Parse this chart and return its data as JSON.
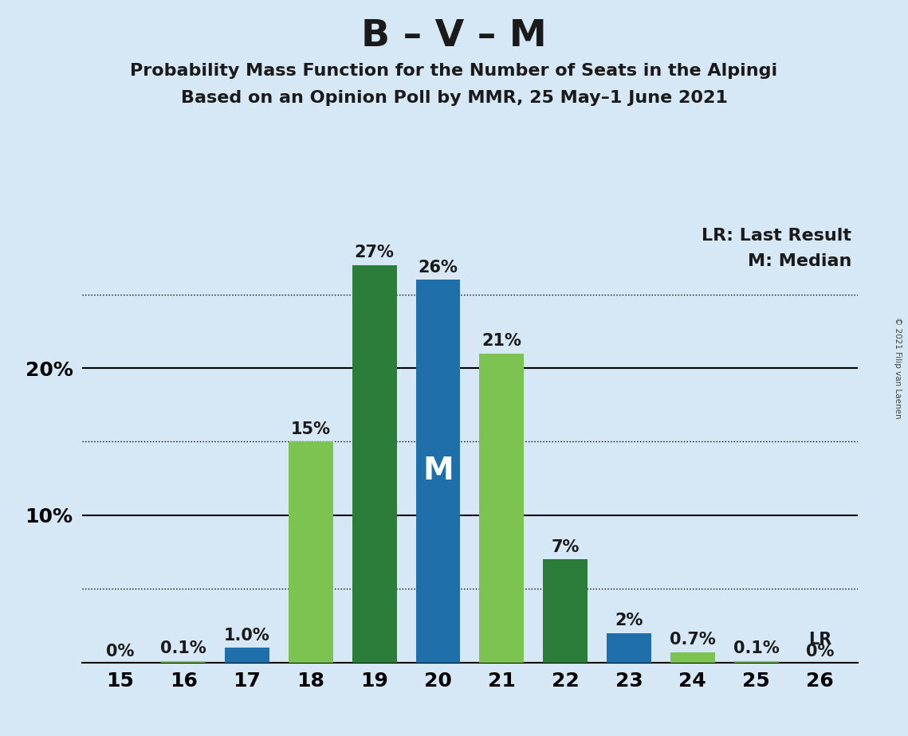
{
  "title": "B – V – M",
  "subtitle1": "Probability Mass Function for the Number of Seats in the Alpingi",
  "subtitle2": "Based on an Opinion Poll by MMR, 25 May–1 June 2021",
  "copyright": "© 2021 Filip van Laenen",
  "seats": [
    15,
    16,
    17,
    18,
    19,
    20,
    21,
    22,
    23,
    24,
    25,
    26
  ],
  "probabilities": [
    0.0,
    0.1,
    1.0,
    15.0,
    27.0,
    26.0,
    21.0,
    7.0,
    2.0,
    0.7,
    0.1,
    0.0
  ],
  "labels": [
    "0%",
    "0.1%",
    "1.0%",
    "15%",
    "27%",
    "26%",
    "21%",
    "7%",
    "2%",
    "0.7%",
    "0.1%",
    "0%"
  ],
  "bar_colors": [
    "#7dc352",
    "#7dc352",
    "#1f6fab",
    "#7dc352",
    "#2d7d3a",
    "#1f6fab",
    "#7dc352",
    "#2d7d3a",
    "#1f6fab",
    "#7dc352",
    "#7dc352",
    "#7dc352"
  ],
  "median_seat": 20,
  "median_label": "M",
  "lr_seat": 26,
  "lr_label": "LR",
  "legend_lr": "LR: Last Result",
  "legend_m": "M: Median",
  "background_color": "#d6e8f5",
  "ylim": [
    0,
    30
  ],
  "dotted_yticks": [
    5,
    15,
    25
  ],
  "solid_yticks": [
    10,
    20
  ],
  "bar_width": 0.7,
  "title_fontsize": 34,
  "subtitle_fontsize": 16,
  "label_fontsize": 15,
  "axis_fontsize": 18,
  "legend_fontsize": 16,
  "median_label_fontsize": 28
}
